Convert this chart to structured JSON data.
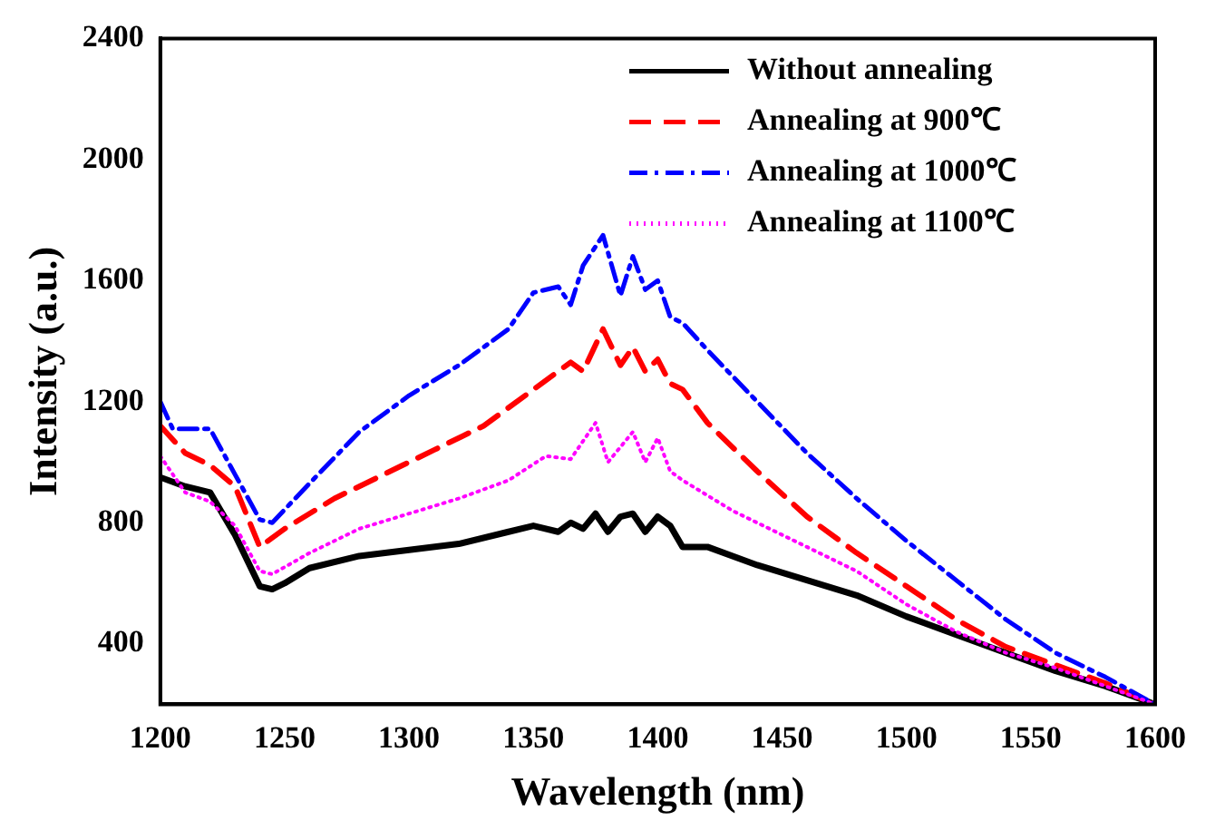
{
  "chart_data": {
    "type": "line",
    "xlabel": "Wavelength (nm)",
    "ylabel": "Intensity (a.u.)",
    "xlim": [
      1200,
      1600
    ],
    "xticks": [
      1200,
      1250,
      1300,
      1350,
      1400,
      1450,
      1500,
      1550,
      1600
    ],
    "ylim": [
      200,
      2400
    ],
    "yticks": [
      400,
      800,
      1200,
      1600,
      2000,
      2400
    ],
    "grid": false,
    "legend": "top right",
    "marker": "none",
    "series": [
      {
        "name": "Without annealing",
        "color": "#000000",
        "line_style": "solid",
        "x": [
          1200,
          1210,
          1220,
          1230,
          1240,
          1245,
          1250,
          1260,
          1280,
          1300,
          1320,
          1340,
          1350,
          1360,
          1365,
          1370,
          1375,
          1380,
          1385,
          1390,
          1395,
          1400,
          1405,
          1410,
          1420,
          1440,
          1460,
          1480,
          1500,
          1520,
          1540,
          1560,
          1580,
          1600
        ],
        "values": [
          950,
          920,
          900,
          760,
          590,
          580,
          600,
          650,
          690,
          710,
          730,
          770,
          790,
          770,
          800,
          780,
          830,
          770,
          820,
          830,
          770,
          820,
          790,
          720,
          720,
          660,
          610,
          560,
          490,
          430,
          370,
          310,
          260,
          200
        ]
      },
      {
        "name": "Annealing at 900℃",
        "color": "#ff0000",
        "line_style": "dashed",
        "x": [
          1200,
          1210,
          1220,
          1230,
          1240,
          1250,
          1270,
          1290,
          1310,
          1330,
          1350,
          1365,
          1370,
          1378,
          1385,
          1390,
          1395,
          1400,
          1405,
          1410,
          1420,
          1440,
          1460,
          1480,
          1500,
          1520,
          1540,
          1560,
          1580,
          1600
        ],
        "values": [
          1120,
          1030,
          990,
          920,
          720,
          780,
          880,
          960,
          1040,
          1120,
          1240,
          1330,
          1300,
          1440,
          1320,
          1380,
          1300,
          1340,
          1260,
          1240,
          1130,
          970,
          820,
          700,
          590,
          480,
          390,
          330,
          270,
          200
        ]
      },
      {
        "name": "Annealing at 1000℃",
        "color": "#0000ff",
        "line_style": "dashdot",
        "x": [
          1200,
          1205,
          1220,
          1230,
          1240,
          1245,
          1260,
          1280,
          1300,
          1320,
          1340,
          1350,
          1360,
          1365,
          1370,
          1378,
          1385,
          1390,
          1395,
          1400,
          1405,
          1410,
          1420,
          1440,
          1460,
          1480,
          1500,
          1520,
          1540,
          1560,
          1580,
          1600
        ],
        "values": [
          1200,
          1110,
          1110,
          960,
          810,
          800,
          930,
          1100,
          1220,
          1320,
          1440,
          1560,
          1580,
          1520,
          1650,
          1750,
          1550,
          1680,
          1570,
          1600,
          1480,
          1460,
          1370,
          1200,
          1030,
          880,
          740,
          610,
          480,
          370,
          290,
          200
        ]
      },
      {
        "name": "Annealing at 1100℃",
        "color": "#ff00ff",
        "line_style": "dotted",
        "x": [
          1200,
          1210,
          1220,
          1230,
          1240,
          1245,
          1260,
          1280,
          1300,
          1320,
          1340,
          1355,
          1365,
          1375,
          1380,
          1390,
          1395,
          1400,
          1405,
          1410,
          1430,
          1460,
          1480,
          1500,
          1520,
          1540,
          1560,
          1580,
          1600
        ],
        "values": [
          1020,
          900,
          870,
          790,
          640,
          630,
          700,
          780,
          830,
          880,
          940,
          1020,
          1010,
          1130,
          1000,
          1100,
          1000,
          1080,
          970,
          940,
          840,
          720,
          640,
          530,
          440,
          370,
          320,
          260,
          200
        ]
      }
    ]
  }
}
